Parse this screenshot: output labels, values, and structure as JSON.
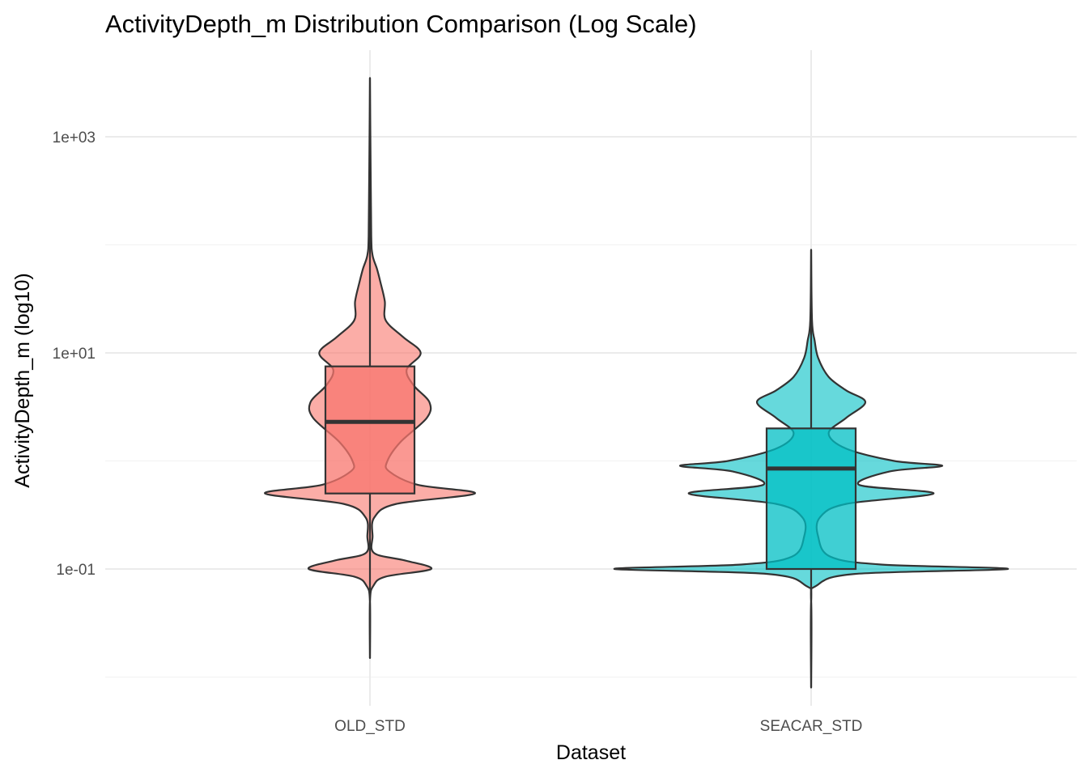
{
  "chart_data": {
    "type": "violin",
    "title": "ActivityDepth_m Distribution Comparison (Log Scale)",
    "xlabel": "Dataset",
    "ylabel": "ActivityDepth_m (log10)",
    "y_scale": "log10",
    "ylim": [
      0.008,
      5000
    ],
    "y_ticks": [
      {
        "value": 0.1,
        "label": "1e-01"
      },
      {
        "value": 10,
        "label": "1e+01"
      },
      {
        "value": 1000,
        "label": "1e+03"
      }
    ],
    "y_minor_gridlines": [
      0.01,
      1,
      100
    ],
    "grid": true,
    "legend": "none",
    "categories": [
      "OLD_STD",
      "SEACAR_STD"
    ],
    "series": [
      {
        "category": "OLD_STD",
        "color": "#F8766D",
        "box": {
          "q1": 0.5,
          "median": 2.3,
          "q3": 7.5,
          "whisker_low": 0.015,
          "whisker_high": 3500
        },
        "violin": [
          [
            0.015,
            0.0
          ],
          [
            0.05,
            0.0
          ],
          [
            0.07,
            0.04
          ],
          [
            0.085,
            0.18
          ],
          [
            0.1,
            0.7
          ],
          [
            0.12,
            0.4
          ],
          [
            0.14,
            0.05
          ],
          [
            0.2,
            0.03
          ],
          [
            0.3,
            0.05
          ],
          [
            0.4,
            0.3
          ],
          [
            0.5,
            1.2
          ],
          [
            0.6,
            0.55
          ],
          [
            0.8,
            0.22
          ],
          [
            1.0,
            0.2
          ],
          [
            1.5,
            0.35
          ],
          [
            2.5,
            0.65
          ],
          [
            3.5,
            0.68
          ],
          [
            5.0,
            0.5
          ],
          [
            7.0,
            0.42
          ],
          [
            10.0,
            0.58
          ],
          [
            14.0,
            0.38
          ],
          [
            20.0,
            0.18
          ],
          [
            30.0,
            0.17
          ],
          [
            45.0,
            0.12
          ],
          [
            60.0,
            0.08
          ],
          [
            80.0,
            0.03
          ],
          [
            120.0,
            0.015
          ],
          [
            500.0,
            0.008
          ],
          [
            3500.0,
            0.0
          ]
        ]
      },
      {
        "category": "SEACAR_STD",
        "color": "#00BFC4",
        "box": {
          "q1": 0.1,
          "median": 0.85,
          "q3": 2.0,
          "whisker_low": 0.008,
          "whisker_high": 90
        },
        "violin": [
          [
            0.008,
            0.0
          ],
          [
            0.05,
            0.0
          ],
          [
            0.07,
            0.06
          ],
          [
            0.09,
            0.5
          ],
          [
            0.1,
            2.25
          ],
          [
            0.11,
            0.8
          ],
          [
            0.13,
            0.22
          ],
          [
            0.2,
            0.08
          ],
          [
            0.3,
            0.1
          ],
          [
            0.4,
            0.4
          ],
          [
            0.5,
            1.4
          ],
          [
            0.6,
            0.55
          ],
          [
            0.8,
            0.9
          ],
          [
            0.9,
            1.5
          ],
          [
            1.0,
            0.95
          ],
          [
            1.3,
            0.4
          ],
          [
            1.8,
            0.2
          ],
          [
            2.5,
            0.4
          ],
          [
            3.5,
            0.62
          ],
          [
            4.5,
            0.4
          ],
          [
            6.0,
            0.2
          ],
          [
            9.0,
            0.08
          ],
          [
            13.0,
            0.04
          ],
          [
            20.0,
            0.01
          ],
          [
            90.0,
            0.0
          ]
        ]
      }
    ]
  }
}
